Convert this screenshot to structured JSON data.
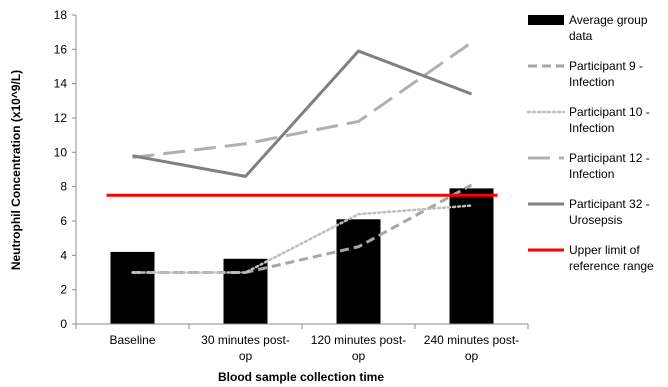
{
  "chart_data": {
    "type": "bar",
    "title": "",
    "xlabel": "Blood sample collection time",
    "ylabel": "Neutrophil Concentration (x10^9/L)",
    "ylim": [
      0,
      18
    ],
    "yticks": [
      0,
      2,
      4,
      6,
      8,
      10,
      12,
      14,
      16,
      18
    ],
    "categories": [
      "Baseline",
      "30 minutes post-op",
      "120 minutes post-op",
      "240 minutes post-op"
    ],
    "category_label_lines": [
      [
        "Baseline"
      ],
      [
        "30 minutes post-",
        "op"
      ],
      [
        "120 minutes post-",
        "op"
      ],
      [
        "240 minutes post-",
        "op"
      ]
    ],
    "grid": false,
    "legend_position": "right",
    "series": [
      {
        "name": "Average group data",
        "kind": "bar",
        "values": [
          4.2,
          3.8,
          6.1,
          7.9
        ],
        "color": "#000000",
        "legend_lines": [
          "Average group",
          "data"
        ]
      },
      {
        "name": "Participant 9 - Infection",
        "kind": "line",
        "style": "dashed",
        "values": [
          3.0,
          3.0,
          4.5,
          8.1
        ],
        "color": "#a6a6a6",
        "legend_lines": [
          "Participant 9 -",
          "Infection"
        ]
      },
      {
        "name": "Participant 10 - Infection",
        "kind": "line",
        "style": "dotted",
        "values": [
          3.0,
          3.0,
          6.4,
          6.9
        ],
        "color": "#bfbfbf",
        "legend_lines": [
          "Participant 10 -",
          "Infection"
        ]
      },
      {
        "name": "Participant 12 - Infection",
        "kind": "line",
        "style": "longdash",
        "values": [
          9.7,
          10.5,
          11.8,
          16.4
        ],
        "color": "#b0b0b0",
        "legend_lines": [
          "Participant 12 -",
          "Infection"
        ]
      },
      {
        "name": "Participant 32 - Urosepsis",
        "kind": "line",
        "style": "solid",
        "values": [
          9.8,
          8.6,
          15.9,
          13.4
        ],
        "color": "#808080",
        "legend_lines": [
          "Participant 32 -",
          "Urosepsis"
        ]
      },
      {
        "name": "Upper limit of reference range",
        "kind": "line",
        "style": "solid",
        "values": [
          7.5,
          7.5,
          7.5,
          7.5
        ],
        "color": "#ff0000",
        "legend_lines": [
          "Upper limit of",
          "reference range"
        ]
      }
    ]
  }
}
